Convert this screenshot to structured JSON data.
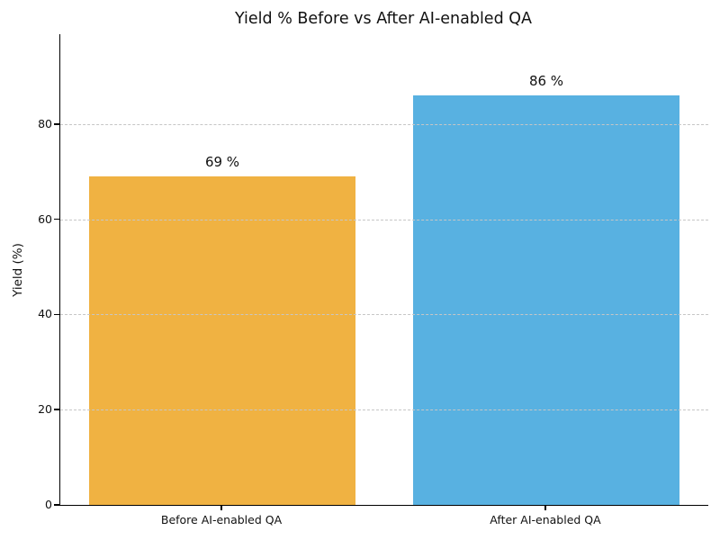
{
  "chart_data": {
    "type": "bar",
    "title": "Yield % Before vs After AI-enabled QA",
    "ylabel": "Yield (%)",
    "xlabel": "",
    "categories": [
      "Before AI-enabled QA",
      "After AI-enabled QA"
    ],
    "values": [
      69,
      86
    ],
    "value_labels": [
      "69 %",
      "86 %"
    ],
    "bar_colors": [
      "#F0B242",
      "#58B1E1"
    ],
    "ylim": [
      0,
      98.9
    ],
    "yticks": [
      0,
      20,
      40,
      60,
      80
    ],
    "grid": {
      "axis": "y",
      "style": "dashed",
      "color": "#c6c6c6",
      "above_bars": true
    },
    "legend": null,
    "background_color": "#ffffff",
    "text_color": "#111111"
  }
}
